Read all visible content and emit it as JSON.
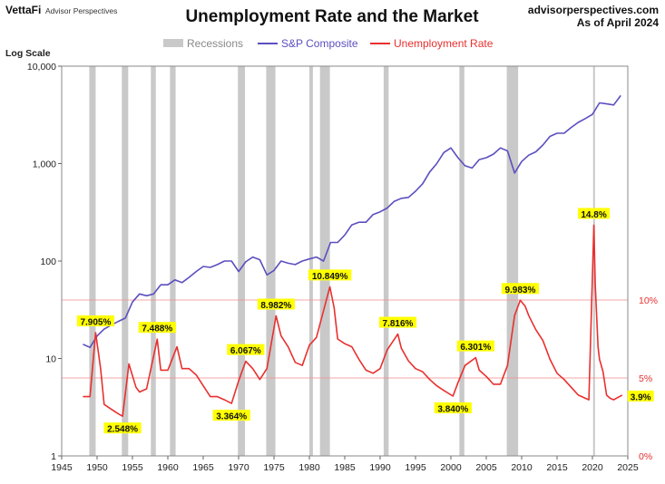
{
  "header": {
    "brand": "VettaFi",
    "brand_sub": "Advisor Perspectives",
    "source": "advisorperspectives.com",
    "as_of": "As of April 2024"
  },
  "colors": {
    "sp": "#5b4fbf",
    "unemp": "#e8302f",
    "recession": "#c9c9c9",
    "annotation_bg": "#ffff00",
    "ref_line": "#f08a8a"
  },
  "chart_data": {
    "type": "line",
    "title": "Unemployment Rate and the Market",
    "left_axis_label": "Log Scale",
    "scale_left": "log",
    "ylim_left": [
      1,
      10000
    ],
    "yticks_left": [
      "1",
      "10",
      "100",
      "1,000",
      "10,000"
    ],
    "ylim_right": [
      0,
      25
    ],
    "yticks_right": [
      "0%",
      "5%",
      "10%"
    ],
    "xlim": [
      1945,
      2025
    ],
    "xticks": [
      "1945",
      "1950",
      "1955",
      "1960",
      "1965",
      "1970",
      "1975",
      "1980",
      "1985",
      "1990",
      "1995",
      "2000",
      "2005",
      "2010",
      "2015",
      "2020",
      "2025"
    ],
    "legend": [
      "Recessions",
      "S&P Composite",
      "Unemployment Rate"
    ],
    "legend_position": "top",
    "recessions": [
      [
        1948.9,
        1949.8
      ],
      [
        1953.5,
        1954.4
      ],
      [
        1957.6,
        1958.3
      ],
      [
        1960.3,
        1961.1
      ],
      [
        1969.9,
        1970.9
      ],
      [
        1973.9,
        1975.2
      ],
      [
        1980.0,
        1980.5
      ],
      [
        1981.5,
        1982.9
      ],
      [
        1990.5,
        1991.2
      ],
      [
        2001.2,
        2001.9
      ],
      [
        2007.9,
        2009.5
      ],
      [
        2020.1,
        2020.3
      ]
    ],
    "series": [
      {
        "name": "S&P Composite",
        "axis": "left",
        "x": [
          1948,
          1949,
          1950,
          1951,
          1952,
          1953,
          1954,
          1955,
          1956,
          1957,
          1958,
          1959,
          1960,
          1961,
          1962,
          1963,
          1964,
          1965,
          1966,
          1967,
          1968,
          1969,
          1970,
          1971,
          1972,
          1973,
          1974,
          1975,
          1976,
          1977,
          1978,
          1979,
          1980,
          1981,
          1982,
          1983,
          1984,
          1985,
          1986,
          1987,
          1988,
          1989,
          1990,
          1991,
          1992,
          1993,
          1994,
          1995,
          1996,
          1997,
          1998,
          1999,
          2000,
          2001,
          2002,
          2003,
          2004,
          2005,
          2006,
          2007,
          2008,
          2009,
          2010,
          2011,
          2012,
          2013,
          2014,
          2015,
          2016,
          2017,
          2018,
          2019,
          2020,
          2021,
          2022,
          2023,
          2024
        ],
        "y": [
          14,
          13,
          17,
          20,
          22,
          24,
          26,
          38,
          46,
          44,
          46,
          57,
          57,
          64,
          60,
          68,
          78,
          88,
          86,
          92,
          100,
          100,
          78,
          98,
          110,
          103,
          72,
          80,
          100,
          95,
          92,
          100,
          105,
          110,
          100,
          155,
          155,
          185,
          235,
          250,
          250,
          300,
          320,
          350,
          410,
          440,
          450,
          520,
          620,
          820,
          1000,
          1300,
          1450,
          1150,
          950,
          900,
          1100,
          1150,
          1250,
          1450,
          1350,
          800,
          1050,
          1220,
          1320,
          1550,
          1900,
          2050,
          2050,
          2350,
          2650,
          2900,
          3200,
          4200,
          4100,
          4000,
          5000
        ]
      },
      {
        "name": "Unemployment Rate",
        "axis": "right",
        "x": [
          1948,
          1949,
          1949.8,
          1950.5,
          1951,
          1952,
          1953,
          1953.6,
          1954.5,
          1955.5,
          1956,
          1957,
          1958.5,
          1959,
          1960,
          1961.3,
          1962,
          1963,
          1964,
          1965,
          1966,
          1967,
          1968,
          1969,
          1970,
          1971,
          1972,
          1973,
          1974,
          1975.3,
          1976,
          1977,
          1978,
          1979,
          1980,
          1981,
          1982.9,
          1983.5,
          1984,
          1985,
          1986,
          1987,
          1988,
          1989,
          1990,
          1991,
          1992.5,
          1993,
          1994,
          1995,
          1996,
          1997,
          1998,
          1999,
          2000.3,
          2001,
          2002,
          2003.5,
          2004,
          2005,
          2006,
          2007,
          2008,
          2009,
          2009.8,
          2010.5,
          2011,
          2012,
          2013,
          2014,
          2015,
          2016,
          2017,
          2018,
          2019.5,
          2020.2,
          2020.4,
          2020.8,
          2021,
          2021.5,
          2022,
          2022.5,
          2023,
          2024.2
        ],
        "y": [
          3.8,
          3.8,
          7.905,
          5.6,
          3.3,
          3.0,
          2.7,
          2.548,
          5.9,
          4.4,
          4.1,
          4.3,
          7.488,
          5.5,
          5.5,
          7.0,
          5.6,
          5.6,
          5.2,
          4.5,
          3.8,
          3.8,
          3.6,
          3.364,
          4.8,
          6.067,
          5.6,
          4.9,
          5.6,
          8.982,
          7.7,
          7.0,
          6.0,
          5.8,
          7.1,
          7.6,
          10.849,
          9.5,
          7.5,
          7.2,
          7.0,
          6.2,
          5.5,
          5.3,
          5.6,
          6.8,
          7.816,
          6.9,
          6.1,
          5.6,
          5.4,
          4.9,
          4.5,
          4.2,
          3.84,
          4.7,
          5.8,
          6.301,
          5.5,
          5.1,
          4.6,
          4.6,
          5.8,
          9.0,
          9.983,
          9.6,
          9.0,
          8.1,
          7.4,
          6.2,
          5.3,
          4.9,
          4.4,
          3.9,
          3.6,
          14.8,
          11.0,
          7.0,
          6.2,
          5.4,
          3.9,
          3.7,
          3.6,
          3.9
        ]
      }
    ],
    "annotations": [
      {
        "text": "7.905%",
        "x": 1949.8,
        "value": 7.905,
        "pos": "above"
      },
      {
        "text": "2.548%",
        "x": 1953.6,
        "value": 2.548,
        "pos": "below"
      },
      {
        "text": "7.488%",
        "x": 1958.5,
        "value": 7.488,
        "pos": "above"
      },
      {
        "text": "6.067%",
        "x": 1971.0,
        "value": 6.067,
        "pos": "above"
      },
      {
        "text": "3.364%",
        "x": 1969.0,
        "value": 3.364,
        "pos": "below"
      },
      {
        "text": "8.982%",
        "x": 1975.3,
        "value": 8.982,
        "pos": "above"
      },
      {
        "text": "10.849%",
        "x": 1982.9,
        "value": 10.849,
        "pos": "above"
      },
      {
        "text": "7.816%",
        "x": 1992.5,
        "value": 7.816,
        "pos": "above"
      },
      {
        "text": "3.840%",
        "x": 2000.3,
        "value": 3.84,
        "pos": "below"
      },
      {
        "text": "6.301%",
        "x": 2003.5,
        "value": 6.301,
        "pos": "above"
      },
      {
        "text": "9.983%",
        "x": 2009.8,
        "value": 9.983,
        "pos": "above"
      },
      {
        "text": "14.8%",
        "x": 2020.2,
        "value": 14.8,
        "pos": "above"
      },
      {
        "text": "3.9%",
        "x": 2024.2,
        "value": 3.9,
        "pos": "right"
      }
    ]
  }
}
